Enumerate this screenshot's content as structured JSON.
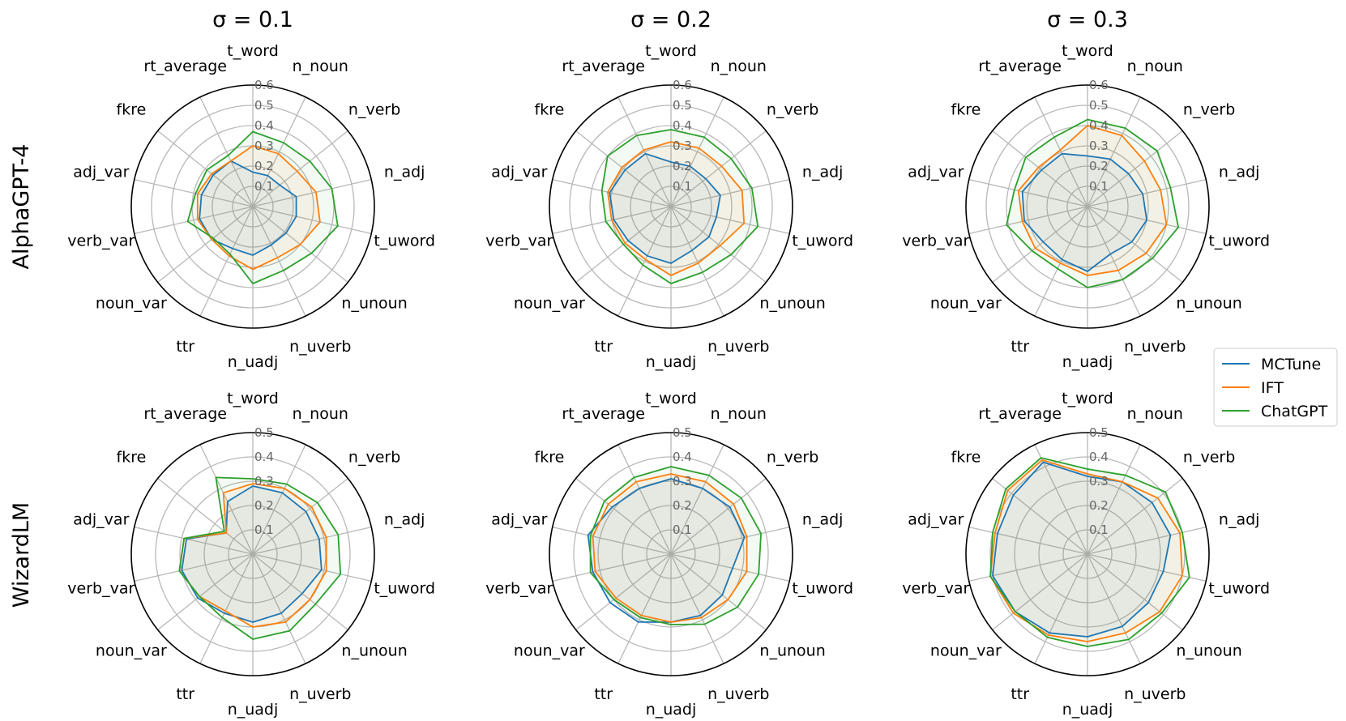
{
  "colors": {
    "MCTune": "#1f77b4",
    "IFT": "#ff7f0e",
    "ChatGPT": "#2ca02c"
  },
  "column_titles": [
    "σ = 0.1",
    "σ = 0.2",
    "σ = 0.3"
  ],
  "row_labels": [
    "AlphaGPT-4",
    "WizardLM"
  ],
  "legend": [
    "MCTune",
    "IFT",
    "ChatGPT"
  ],
  "chart_data": [
    {
      "type": "radar",
      "row": "AlphaGPT-4",
      "column": "σ = 0.1",
      "categories": [
        "t_word",
        "n_noun",
        "n_verb",
        "n_adj",
        "t_uword",
        "n_unoun",
        "n_uverb",
        "n_uadj",
        "ttr",
        "noun_var",
        "verb_var",
        "adj_var",
        "fkre",
        "rt_average"
      ],
      "rlim": [
        0,
        0.6
      ],
      "rticks": [
        0.1,
        0.2,
        0.3,
        0.4,
        0.5,
        0.6
      ],
      "series": [
        {
          "name": "MCTune",
          "values": [
            0.17,
            0.17,
            0.17,
            0.22,
            0.22,
            0.21,
            0.21,
            0.24,
            0.23,
            0.26,
            0.27,
            0.26,
            0.25,
            0.25
          ]
        },
        {
          "name": "IFT",
          "values": [
            0.3,
            0.29,
            0.28,
            0.32,
            0.34,
            0.3,
            0.28,
            0.31,
            0.27,
            0.26,
            0.28,
            0.28,
            0.26,
            0.25
          ]
        },
        {
          "name": "ChatGPT",
          "values": [
            0.37,
            0.35,
            0.36,
            0.4,
            0.43,
            0.37,
            0.35,
            0.38,
            0.26,
            0.25,
            0.33,
            0.29,
            0.29,
            0.28
          ]
        }
      ]
    },
    {
      "type": "radar",
      "row": "AlphaGPT-4",
      "column": "σ = 0.2",
      "categories": [
        "t_word",
        "n_noun",
        "n_verb",
        "n_adj",
        "t_uword",
        "n_unoun",
        "n_uverb",
        "n_uadj",
        "ttr",
        "noun_var",
        "verb_var",
        "adj_var",
        "fkre",
        "rt_average"
      ],
      "rlim": [
        0,
        0.6
      ],
      "rticks": [
        0.1,
        0.2,
        0.3,
        0.4,
        0.5,
        0.6
      ],
      "series": [
        {
          "name": "MCTune",
          "values": [
            0.22,
            0.22,
            0.22,
            0.25,
            0.23,
            0.24,
            0.24,
            0.28,
            0.27,
            0.27,
            0.29,
            0.31,
            0.29,
            0.29
          ]
        },
        {
          "name": "IFT",
          "values": [
            0.32,
            0.32,
            0.32,
            0.36,
            0.37,
            0.31,
            0.31,
            0.34,
            0.29,
            0.29,
            0.3,
            0.32,
            0.31,
            0.31
          ]
        },
        {
          "name": "ChatGPT",
          "values": [
            0.38,
            0.38,
            0.38,
            0.41,
            0.44,
            0.38,
            0.36,
            0.38,
            0.32,
            0.3,
            0.33,
            0.35,
            0.4,
            0.39
          ]
        }
      ]
    },
    {
      "type": "radar",
      "row": "AlphaGPT-4",
      "column": "σ = 0.3",
      "categories": [
        "t_word",
        "n_noun",
        "n_verb",
        "n_adj",
        "t_uword",
        "n_unoun",
        "n_uverb",
        "n_uadj",
        "ttr",
        "noun_var",
        "verb_var",
        "adj_var",
        "fkre",
        "rt_average"
      ],
      "rlim": [
        0,
        0.6
      ],
      "rticks": [
        0.1,
        0.2,
        0.3,
        0.4,
        0.5,
        0.6
      ],
      "series": [
        {
          "name": "MCTune",
          "values": [
            0.25,
            0.26,
            0.26,
            0.28,
            0.3,
            0.28,
            0.26,
            0.32,
            0.29,
            0.28,
            0.32,
            0.33,
            0.29,
            0.29
          ]
        },
        {
          "name": "IFT",
          "values": [
            0.4,
            0.39,
            0.36,
            0.37,
            0.4,
            0.37,
            0.35,
            0.34,
            0.31,
            0.33,
            0.33,
            0.35,
            0.31,
            0.31
          ]
        },
        {
          "name": "ChatGPT",
          "values": [
            0.43,
            0.43,
            0.44,
            0.42,
            0.46,
            0.41,
            0.4,
            0.4,
            0.34,
            0.35,
            0.41,
            0.37,
            0.39,
            0.38
          ]
        }
      ]
    },
    {
      "type": "radar",
      "row": "WizardLM",
      "column": "σ = 0.1",
      "categories": [
        "t_word",
        "n_noun",
        "n_verb",
        "n_adj",
        "t_uword",
        "n_unoun",
        "n_uverb",
        "n_uadj",
        "ttr",
        "noun_var",
        "verb_var",
        "adj_var",
        "fkre",
        "rt_average"
      ],
      "rlim": [
        0,
        0.5
      ],
      "rticks": [
        0.1,
        0.2,
        0.3,
        0.4,
        0.5
      ],
      "series": [
        {
          "name": "MCTune",
          "values": [
            0.28,
            0.28,
            0.28,
            0.28,
            0.29,
            0.26,
            0.27,
            0.28,
            0.27,
            0.29,
            0.3,
            0.28,
            0.14,
            0.24
          ]
        },
        {
          "name": "IFT",
          "values": [
            0.29,
            0.3,
            0.31,
            0.31,
            0.31,
            0.3,
            0.31,
            0.3,
            0.26,
            0.28,
            0.31,
            0.29,
            0.14,
            0.28
          ]
        },
        {
          "name": "ChatGPT",
          "values": [
            0.31,
            0.32,
            0.34,
            0.36,
            0.37,
            0.33,
            0.35,
            0.35,
            0.29,
            0.28,
            0.31,
            0.29,
            0.15,
            0.35
          ]
        }
      ]
    },
    {
      "type": "radar",
      "row": "WizardLM",
      "column": "σ = 0.2",
      "categories": [
        "t_word",
        "n_noun",
        "n_verb",
        "n_adj",
        "t_uword",
        "n_unoun",
        "n_uverb",
        "n_uadj",
        "ttr",
        "noun_var",
        "verb_var",
        "adj_var",
        "fkre",
        "rt_average"
      ],
      "rlim": [
        0,
        0.5
      ],
      "rticks": [
        0.1,
        0.2,
        0.3,
        0.4,
        0.5
      ],
      "series": [
        {
          "name": "MCTune",
          "values": [
            0.31,
            0.3,
            0.31,
            0.31,
            0.26,
            0.27,
            0.28,
            0.28,
            0.31,
            0.32,
            0.33,
            0.35,
            0.31,
            0.3
          ]
        },
        {
          "name": "IFT",
          "values": [
            0.33,
            0.33,
            0.33,
            0.32,
            0.32,
            0.3,
            0.29,
            0.28,
            0.28,
            0.29,
            0.32,
            0.33,
            0.33,
            0.33
          ]
        },
        {
          "name": "ChatGPT",
          "values": [
            0.36,
            0.36,
            0.37,
            0.38,
            0.37,
            0.35,
            0.32,
            0.29,
            0.29,
            0.3,
            0.34,
            0.34,
            0.35,
            0.35
          ]
        }
      ]
    },
    {
      "type": "radar",
      "row": "WizardLM",
      "column": "σ = 0.3",
      "categories": [
        "t_word",
        "n_noun",
        "n_verb",
        "n_adj",
        "t_uword",
        "n_unoun",
        "n_uverb",
        "n_uadj",
        "ttr",
        "noun_var",
        "verb_var",
        "adj_var",
        "fkre",
        "rt_average"
      ],
      "rlim": [
        0,
        0.5
      ],
      "rticks": [
        0.1,
        0.2,
        0.3,
        0.4,
        0.5
      ],
      "series": [
        {
          "name": "MCTune",
          "values": [
            0.32,
            0.33,
            0.34,
            0.35,
            0.32,
            0.32,
            0.33,
            0.34,
            0.36,
            0.38,
            0.4,
            0.38,
            0.39,
            0.42
          ]
        },
        {
          "name": "IFT",
          "values": [
            0.33,
            0.33,
            0.37,
            0.39,
            0.4,
            0.38,
            0.36,
            0.36,
            0.37,
            0.39,
            0.41,
            0.39,
            0.42,
            0.43
          ]
        },
        {
          "name": "ChatGPT",
          "values": [
            0.35,
            0.36,
            0.41,
            0.4,
            0.43,
            0.39,
            0.39,
            0.38,
            0.38,
            0.38,
            0.41,
            0.4,
            0.43,
            0.44
          ]
        }
      ]
    }
  ]
}
